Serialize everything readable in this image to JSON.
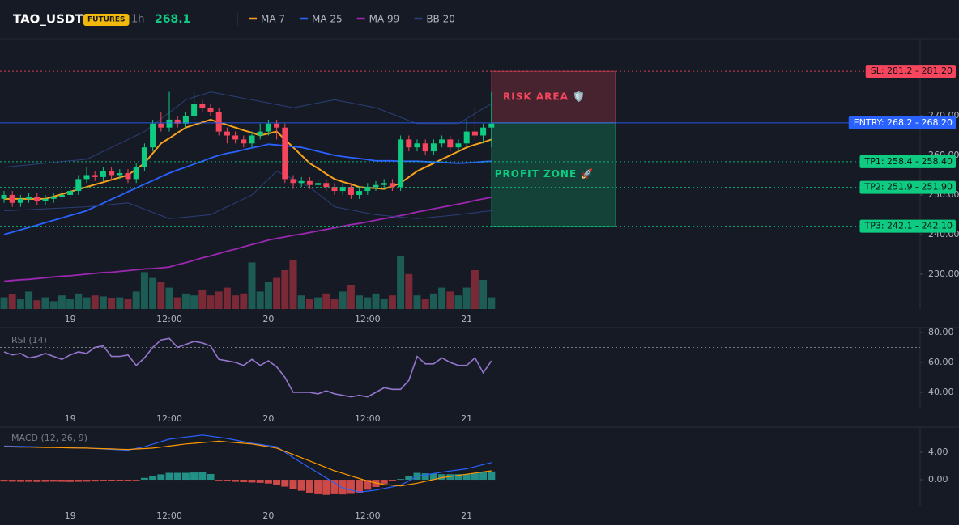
{
  "header": {
    "symbol": "TAO_USDT",
    "badge": "FUTURES",
    "interval": "1h",
    "price": 268.1
  },
  "chart_data": [
    {
      "type": "candlestick",
      "categories": [
        null,
        null,
        null,
        null,
        null,
        null,
        null,
        null,
        "19",
        null,
        null,
        null,
        null,
        null,
        null,
        null,
        null,
        null,
        null,
        null,
        "12:00",
        null,
        null,
        null,
        null,
        null,
        null,
        null,
        null,
        null,
        null,
        null,
        "20",
        null,
        null,
        null,
        null,
        null,
        null,
        null,
        null,
        null,
        null,
        null,
        "12:00",
        null,
        null,
        null,
        null,
        null,
        null,
        null,
        null,
        null,
        null,
        null,
        "21",
        null,
        null,
        null
      ],
      "open": [
        249,
        250,
        248,
        249,
        249.5,
        248.5,
        249,
        249.5,
        250,
        251,
        254,
        255,
        254.5,
        256,
        255,
        255.5,
        254,
        257,
        262,
        268,
        267,
        269,
        268,
        270,
        273,
        272,
        271,
        266,
        265,
        264,
        263,
        265,
        266,
        268,
        267,
        254,
        253,
        253.5,
        252.5,
        253,
        252,
        251,
        252,
        250,
        251,
        252,
        252.5,
        253,
        252,
        264,
        262,
        263,
        261,
        263,
        264,
        262,
        263,
        266,
        265,
        267
      ],
      "high": [
        251,
        251,
        250,
        250.5,
        250.5,
        250,
        250.5,
        251,
        252,
        255,
        257,
        256,
        257,
        257,
        256.5,
        256.5,
        258,
        263,
        269,
        271,
        276,
        270,
        271,
        276,
        274,
        273,
        272,
        267,
        266,
        265,
        266,
        268,
        269,
        269,
        268,
        255,
        254.5,
        254.5,
        254,
        254,
        253,
        253,
        253,
        252,
        253,
        253.5,
        254,
        254,
        265,
        265,
        264,
        264,
        264,
        265,
        265,
        264,
        269,
        272,
        268,
        276
      ],
      "low": [
        248,
        247,
        247,
        248,
        247.5,
        247.5,
        248,
        248.5,
        249,
        250,
        253,
        253.5,
        253.5,
        254,
        254,
        253,
        253,
        256,
        261,
        266,
        266,
        267,
        267,
        269,
        271,
        270,
        265,
        263,
        263,
        262,
        262,
        264,
        265,
        264,
        253,
        251.5,
        252,
        251.5,
        251.5,
        251,
        250,
        250,
        249,
        249,
        250,
        251,
        251.5,
        251,
        251,
        261,
        261,
        260,
        260,
        262,
        261,
        261,
        262,
        264,
        263,
        262
      ],
      "close": [
        250,
        248,
        249,
        249.5,
        248.5,
        249,
        249.5,
        250,
        251,
        254,
        255,
        254.5,
        256,
        255,
        255.5,
        254,
        257,
        262,
        268,
        267,
        269,
        268,
        270,
        273,
        272,
        271,
        266,
        265,
        264,
        263,
        265,
        266,
        268,
        267,
        254,
        253,
        253.5,
        252.5,
        253,
        252,
        251,
        252,
        250,
        251,
        252,
        252.5,
        253,
        252,
        264,
        262,
        263,
        261,
        263,
        264,
        262,
        263,
        266,
        265,
        267,
        268
      ],
      "volume": [
        12,
        15,
        10,
        18,
        9,
        12,
        8,
        14,
        10,
        16,
        12,
        14,
        13,
        11,
        12,
        10,
        18,
        38,
        32,
        28,
        22,
        12,
        16,
        14,
        20,
        14,
        18,
        22,
        14,
        16,
        48,
        18,
        28,
        32,
        40,
        50,
        14,
        10,
        12,
        16,
        10,
        18,
        25,
        14,
        12,
        16,
        10,
        14,
        55,
        36,
        14,
        10,
        16,
        22,
        18,
        14,
        22,
        40,
        30,
        12
      ],
      "up_color": "#0ecb81",
      "down_color": "#f6465d",
      "volume_up_color": "#1d5b55",
      "volume_down_color": "#7a2a36",
      "series": [
        {
          "name": "MA 7",
          "color": "#f7a21b",
          "values": [
            249,
            249,
            249,
            249,
            249,
            249,
            249.6,
            250.2,
            250.8,
            251.4,
            252,
            252.6,
            253.2,
            253.8,
            254.4,
            255,
            256.5,
            258,
            260.5,
            263,
            264.3,
            265.7,
            267,
            267.7,
            268.3,
            269,
            268.3,
            267.7,
            267,
            266.3,
            265.7,
            265,
            265.5,
            266,
            264,
            262,
            260,
            258,
            256.7,
            255.3,
            254,
            253.3,
            252.7,
            252,
            251.8,
            251.7,
            251.5,
            252.2,
            253,
            254.5,
            256,
            257,
            258,
            259,
            260,
            261,
            262,
            262.7,
            263.3,
            264
          ]
        },
        {
          "name": "MA 25",
          "color": "#2962ff",
          "values": [
            240,
            240.6,
            241.2,
            241.8,
            242.4,
            243,
            243.6,
            244.2,
            244.8,
            245.4,
            246,
            247,
            247.9,
            248.9,
            249.8,
            250.8,
            251.7,
            252.7,
            253.6,
            254.6,
            255.5,
            256.3,
            257,
            257.8,
            258.5,
            259.3,
            260,
            260.5,
            260.9,
            261.4,
            261.9,
            262.3,
            262.8,
            262.6,
            262.4,
            262.2,
            262,
            261.5,
            261,
            260.5,
            260,
            259.7,
            259.4,
            259.2,
            258.9,
            258.6,
            258.6,
            258.6,
            258.5,
            258.5,
            258.5,
            258.4,
            258.3,
            258.2,
            258.1,
            258,
            258.1,
            258.2,
            258.4,
            258.5
          ]
        },
        {
          "name": "MA 99",
          "color": "#9c27b0",
          "values": [
            228.2,
            228.4,
            228.6,
            228.7,
            228.9,
            229.1,
            229.3,
            229.5,
            229.6,
            229.8,
            230,
            230.2,
            230.4,
            230.5,
            230.7,
            230.9,
            231.1,
            231.3,
            231.4,
            231.6,
            231.8,
            232.4,
            232.9,
            233.5,
            234.1,
            234.6,
            235.2,
            235.8,
            236.3,
            236.9,
            237.5,
            238,
            238.6,
            239,
            239.4,
            239.8,
            240.1,
            240.5,
            240.9,
            241.3,
            241.7,
            242.1,
            242.5,
            242.8,
            243.2,
            243.6,
            244,
            244.4,
            244.8,
            245.2,
            245.7,
            246.1,
            246.5,
            246.9,
            247.3,
            247.7,
            248.1,
            248.6,
            249,
            249.4
          ]
        },
        {
          "name": "BB 20",
          "color": "#2b3f78",
          "upper": [
            257,
            257.2,
            257.4,
            257.6,
            257.8,
            258,
            258.2,
            258.4,
            258.6,
            258.8,
            259,
            260,
            261,
            262,
            263,
            264,
            265,
            266,
            267.6,
            269.2,
            270.8,
            272.4,
            274,
            274.7,
            275.3,
            276,
            275.6,
            275.2,
            274.8,
            274.4,
            274,
            273.6,
            273.2,
            272.8,
            272.4,
            272,
            272.4,
            272.8,
            273.2,
            273.6,
            274,
            273.6,
            273.2,
            272.8,
            272.4,
            272,
            271.2,
            270.4,
            269.6,
            268.8,
            268,
            268,
            268,
            268,
            268,
            268,
            269.3,
            270.5,
            271.8,
            273
          ],
          "lower": [
            246,
            246.1,
            246.2,
            246.3,
            246.4,
            246.5,
            246.6,
            246.7,
            246.8,
            246.9,
            247,
            247.2,
            247.4,
            247.6,
            247.8,
            248,
            247.2,
            246.4,
            245.6,
            244.8,
            244,
            244.2,
            244.4,
            244.6,
            244.8,
            245,
            246,
            247,
            248,
            249,
            250,
            252,
            254,
            256,
            255,
            254,
            253,
            252,
            250.3,
            248.7,
            247,
            246.6,
            246.2,
            245.8,
            245.4,
            245,
            244.8,
            244.6,
            244.4,
            244.2,
            244,
            244.2,
            244.4,
            244.6,
            244.8,
            245,
            245.3,
            245.5,
            245.8,
            246
          ]
        }
      ],
      "levels": [
        {
          "label": "SL: 281.2 - 281.20",
          "value": 281.2,
          "color": "#f6465d",
          "style": "dotted"
        },
        {
          "label": "ENTRY: 268.2 - 268.20",
          "value": 268.2,
          "color": "#2962ff",
          "style": "solid"
        },
        {
          "label": "TP1: 258.4 - 258.40",
          "value": 258.4,
          "color": "#0ecb81",
          "style": "dotted"
        },
        {
          "label": "TP2: 251.9 - 251.90",
          "value": 251.9,
          "color": "#0ecb81",
          "style": "dotted"
        },
        {
          "label": "TP3: 242.1 - 242.10",
          "value": 242.1,
          "color": "#0ecb81",
          "style": "dotted"
        }
      ],
      "zones": [
        {
          "label": "RISK AREA 🛡️",
          "from": 268.2,
          "to": 281.2,
          "color": "#f6465d"
        },
        {
          "label": "PROFIT ZONE 🚀",
          "from": 242.1,
          "to": 268.2,
          "color": "#0ecb81"
        }
      ],
      "ylim": [
        221.2,
        289.4
      ],
      "yticks": [
        {
          "value": 230,
          "label": "230.00"
        },
        {
          "value": 240,
          "label": "240.00"
        },
        {
          "value": 250,
          "label": "250.00"
        },
        {
          "value": 260,
          "label": "260.00"
        },
        {
          "value": 270,
          "label": "270.00"
        }
      ]
    },
    {
      "type": "line",
      "title": "RSI (14)",
      "series": [
        {
          "color": "#9575cd",
          "values": [
            67,
            65,
            66,
            63,
            64,
            66,
            64,
            62,
            65,
            67,
            66,
            70,
            71,
            64,
            64,
            65,
            58,
            63,
            70,
            75,
            76,
            70,
            72,
            74,
            73,
            71,
            62,
            61,
            60,
            58,
            62,
            58,
            61,
            57,
            50,
            40,
            40,
            40,
            39,
            41,
            39,
            38,
            37,
            38,
            37,
            40,
            43,
            42,
            42,
            48,
            64,
            59,
            59,
            63,
            60,
            58,
            58,
            63,
            53,
            61
          ]
        }
      ],
      "level": 70,
      "ylim": [
        29.2,
        83.2
      ],
      "yticks": [
        {
          "value": 40,
          "label": "40.00"
        },
        {
          "value": 60,
          "label": "60.00"
        },
        {
          "value": 80,
          "label": "80.00"
        }
      ]
    },
    {
      "type": "macd",
      "title": "MACD (12, 26, 9)",
      "histogram": [
        -0.25,
        -0.28,
        -0.3,
        -0.3,
        -0.32,
        -0.3,
        -0.28,
        -0.3,
        -0.32,
        -0.3,
        -0.28,
        -0.25,
        -0.22,
        -0.2,
        -0.18,
        -0.15,
        -0.1,
        0.27,
        0.57,
        0.78,
        1.0,
        1.0,
        1.0,
        1.05,
        1.1,
        0.83,
        -0.1,
        -0.2,
        -0.3,
        -0.35,
        -0.4,
        -0.45,
        -0.55,
        -0.7,
        -1.0,
        -1.3,
        -1.6,
        -1.9,
        -2.1,
        -2.2,
        -2.1,
        -2.13,
        -2.05,
        -1.98,
        -1.45,
        -1.05,
        -0.57,
        -0.23,
        0.1,
        0.55,
        1.0,
        0.93,
        0.87,
        0.8,
        0.8,
        0.8,
        0.8,
        0.93,
        1.07,
        1.2
      ],
      "up_color": "#26a69a",
      "down_color": "#ef5350",
      "series": [
        {
          "color": "#2962ff",
          "values": [
            4.9,
            4.87,
            4.84,
            4.81,
            4.78,
            4.75,
            4.72,
            4.69,
            4.66,
            4.63,
            4.6,
            4.54,
            4.48,
            4.42,
            4.36,
            4.3,
            4.55,
            4.8,
            5.17,
            5.53,
            5.9,
            6.05,
            6.2,
            6.35,
            6.5,
            6.33,
            6.17,
            6.0,
            5.77,
            5.53,
            5.3,
            5.13,
            4.97,
            4.8,
            4.0,
            3.2,
            2.47,
            1.73,
            1.0,
            0.27,
            -0.47,
            -1.2,
            -1.5,
            -1.8,
            -1.65,
            -1.5,
            -1.27,
            -1.03,
            -0.8,
            -0.15,
            0.5,
            0.7,
            0.9,
            1.1,
            1.27,
            1.43,
            1.6,
            1.9,
            2.2,
            2.5
          ]
        },
        {
          "color": "#ff9800",
          "values": [
            4.8,
            4.78,
            4.76,
            4.74,
            4.72,
            4.7,
            4.68,
            4.66,
            4.64,
            4.62,
            4.6,
            4.56,
            4.52,
            4.48,
            4.44,
            4.4,
            4.47,
            4.53,
            4.6,
            4.75,
            4.9,
            5.05,
            5.2,
            5.3,
            5.4,
            5.5,
            5.6,
            5.5,
            5.4,
            5.3,
            5.2,
            5.0,
            4.8,
            4.6,
            4.13,
            3.67,
            3.2,
            2.73,
            2.25,
            1.78,
            1.3,
            0.93,
            0.55,
            0.18,
            -0.2,
            -0.45,
            -0.7,
            -0.8,
            -0.9,
            -0.7,
            -0.5,
            -0.23,
            0.03,
            0.3,
            0.47,
            0.63,
            0.8,
            0.97,
            1.13,
            1.3
          ]
        }
      ],
      "ylim": [
        -3.76,
        7.65
      ],
      "yticks": [
        {
          "value": 0,
          "label": "0.00"
        },
        {
          "value": 4,
          "label": "4.00"
        }
      ]
    }
  ]
}
